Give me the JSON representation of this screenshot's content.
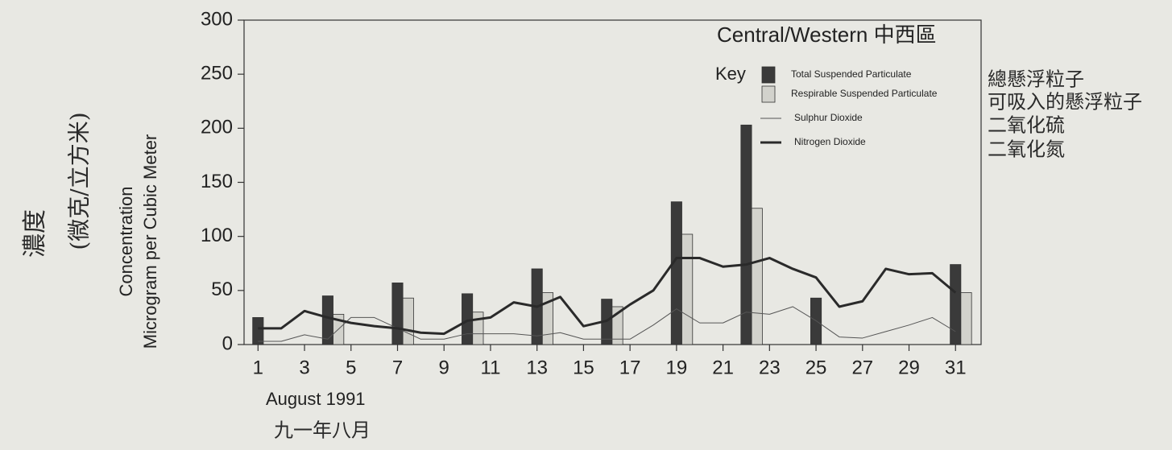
{
  "chart_data": {
    "type": "bar",
    "title": "Central/Western 中西區",
    "y_label": [
      "Concentration",
      "Microgram per Cubic Meter"
    ],
    "y_label_chinese": [
      "濃度",
      "(微克/立方米)"
    ],
    "x_label": "August 1991",
    "x_label_chinese": "九一年八月",
    "legend_title": "Key",
    "legend_chinese": [
      "總懸浮粒子",
      "可吸入的懸浮粒子",
      "二氧化硫",
      "二氧化氮"
    ],
    "x": [
      1,
      2,
      3,
      4,
      5,
      6,
      7,
      8,
      9,
      10,
      11,
      12,
      13,
      14,
      15,
      16,
      17,
      18,
      19,
      20,
      21,
      22,
      23,
      24,
      25,
      26,
      27,
      28,
      29,
      30,
      31
    ],
    "xlim": [
      0.4,
      32.1
    ],
    "xticks": [
      1,
      3,
      5,
      7,
      9,
      11,
      13,
      15,
      17,
      19,
      21,
      23,
      25,
      27,
      29,
      31
    ],
    "ylim": [
      0,
      300
    ],
    "yticks": [
      0,
      50,
      100,
      150,
      200,
      250,
      300
    ],
    "series": [
      {
        "name": "Total Suspended Particulate",
        "type": "bar",
        "color": "#3a3a3a",
        "values": [
          25,
          null,
          null,
          45,
          null,
          null,
          57,
          null,
          null,
          47,
          null,
          null,
          70,
          null,
          null,
          42,
          null,
          null,
          132,
          null,
          null,
          203,
          null,
          null,
          43,
          null,
          null,
          null,
          null,
          null,
          74
        ]
      },
      {
        "name": "Respirable Suspended Particulate",
        "type": "bar",
        "color": "#d2d2cc",
        "values": [
          null,
          null,
          null,
          28,
          null,
          null,
          43,
          null,
          null,
          30,
          null,
          null,
          48,
          null,
          null,
          35,
          null,
          null,
          102,
          null,
          null,
          126,
          null,
          null,
          null,
          null,
          null,
          null,
          null,
          null,
          48
        ]
      },
      {
        "name": "Sulphur Dioxide",
        "type": "line",
        "color": "#555555",
        "line_width": 1,
        "values": [
          3,
          3,
          9,
          5,
          25,
          25,
          15,
          5,
          5,
          10,
          10,
          10,
          8,
          11,
          5,
          5,
          5,
          18,
          33,
          20,
          20,
          30,
          28,
          35,
          22,
          7,
          6,
          12,
          18,
          25,
          12
        ]
      },
      {
        "name": "Nitrogen Dioxide",
        "type": "line",
        "color": "#2a2a2a",
        "line_width": 3,
        "values": [
          15,
          15,
          31,
          25,
          20,
          17,
          15,
          11,
          10,
          22,
          25,
          39,
          35,
          44,
          17,
          22,
          37,
          50,
          80,
          80,
          72,
          74,
          80,
          70,
          62,
          35,
          40,
          70,
          65,
          66,
          48
        ]
      }
    ]
  }
}
